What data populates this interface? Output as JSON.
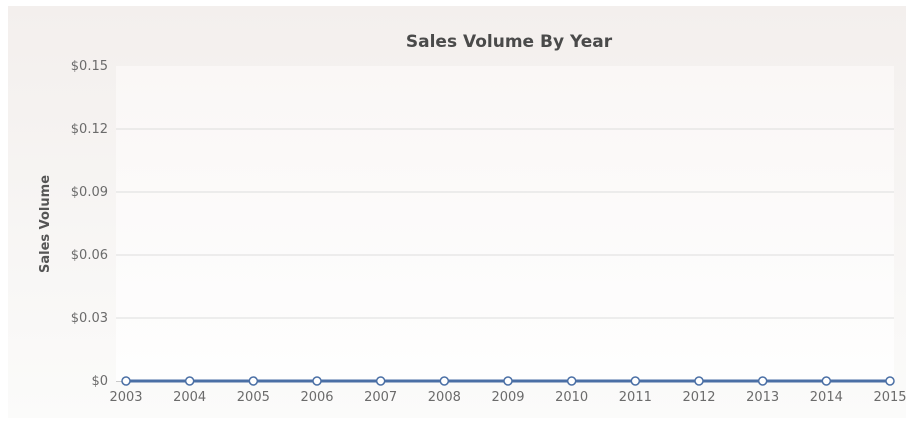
{
  "chart_data": {
    "type": "line",
    "title": "Sales Volume By Year",
    "xlabel": "",
    "ylabel": "Sales Volume",
    "categories": [
      "2003",
      "2004",
      "2005",
      "2006",
      "2007",
      "2008",
      "2009",
      "2010",
      "2011",
      "2012",
      "2013",
      "2014",
      "2015"
    ],
    "series": [
      {
        "values": [
          0,
          0,
          0,
          0,
          0,
          0,
          0,
          0,
          0,
          0,
          0,
          0,
          0
        ]
      }
    ],
    "ylim": [
      0,
      0.15
    ],
    "yticks": [
      0,
      0.03,
      0.06,
      0.09,
      0.12,
      0.15
    ],
    "ytick_labels": [
      "$0",
      "$0.03",
      "$0.06",
      "$0.09",
      "$0.12",
      "$0.15"
    ],
    "grid": true,
    "legend": "none",
    "colors": {
      "line": "#4a6fa5",
      "marker_fill": "#ffffff",
      "background": "#f5f2f0",
      "plot_top": "#fbf9f8",
      "plot_bottom": "#fdfdfc",
      "grid": "#dddddd",
      "axis": "#c9c9c9"
    }
  }
}
